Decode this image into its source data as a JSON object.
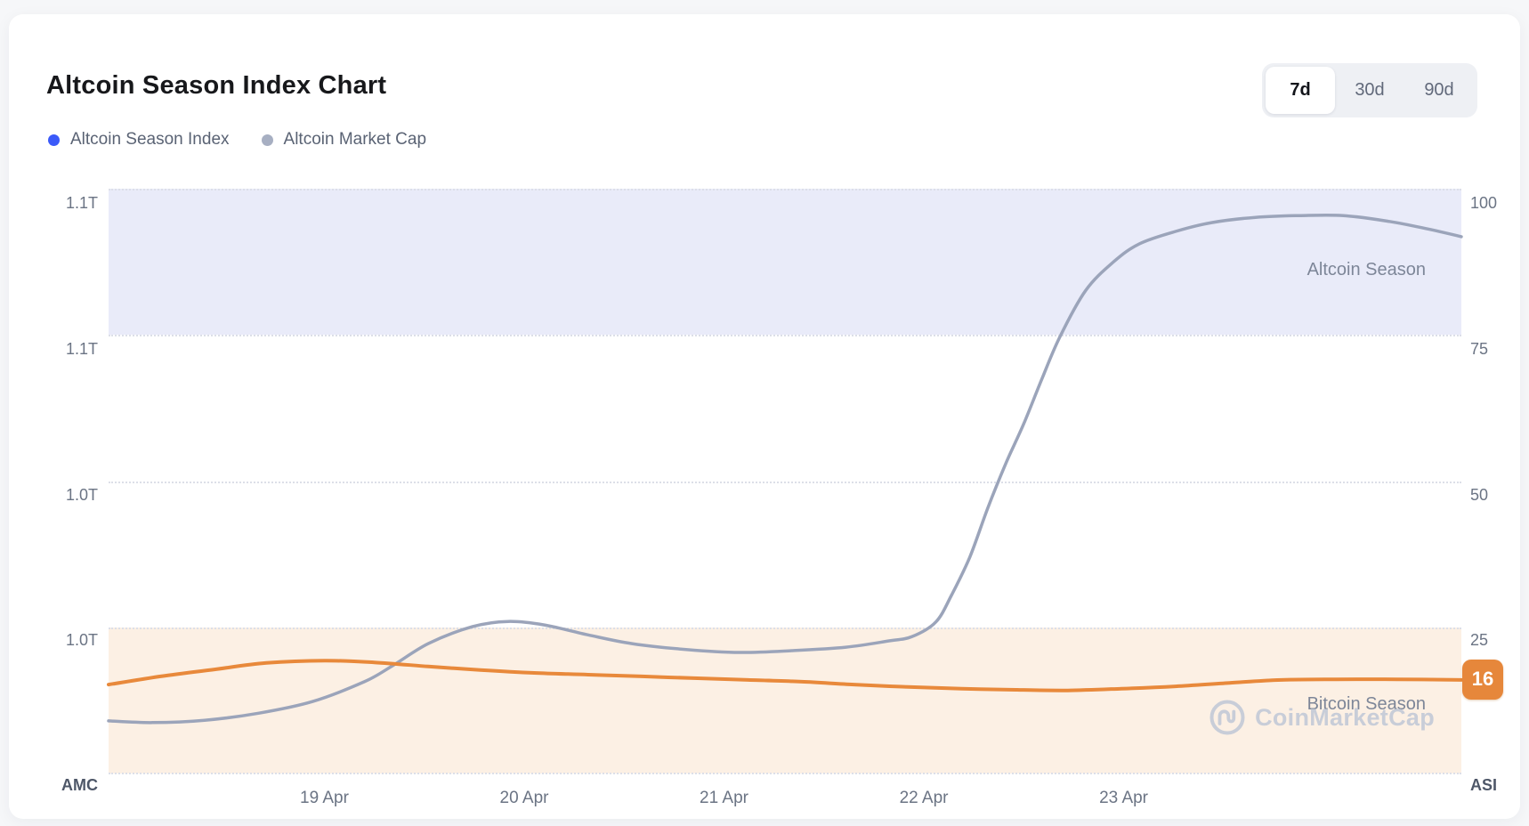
{
  "header": {
    "title": "Altcoin Season Index Chart",
    "ranges": [
      {
        "label": "7d",
        "active": true
      },
      {
        "label": "30d",
        "active": false
      },
      {
        "label": "90d",
        "active": false
      }
    ]
  },
  "legend": {
    "items": [
      {
        "label": "Altcoin Season Index"
      },
      {
        "label": "Altcoin Market Cap"
      }
    ]
  },
  "chart": {
    "zone_labels": {
      "altcoin": "Altcoin Season",
      "bitcoin": "Bitcoin Season"
    },
    "watermark_text": "CoinMarketCap",
    "colors": {
      "asi_line": "#e8893b",
      "amc_line": "#9ba4ba",
      "badge_bg": "#e6873b",
      "legend_asi_dot": "#3b5af9",
      "legend_amc_dot": "#a7afc2",
      "altcoin_band": "#e9ebf9",
      "bitcoin_band": "#fcf0e4"
    }
  },
  "chart_data": {
    "type": "line",
    "title": "Altcoin Season Index Chart",
    "x_axis": {
      "unit": "date",
      "tick_labels": [
        "19 Apr",
        "20 Apr",
        "21 Apr",
        "22 Apr",
        "23 Apr"
      ],
      "tick_t": [
        1,
        2,
        3,
        4,
        5
      ],
      "t_range": [
        -0.08,
        6.69
      ]
    },
    "right_axis": {
      "name": "ASI",
      "tick_labels": [
        "100",
        "75",
        "50",
        "25"
      ],
      "tick_values": [
        100,
        75,
        50,
        25
      ],
      "range": [
        0,
        100
      ]
    },
    "left_axis": {
      "name": "AMC",
      "tick_labels": [
        "1.1T",
        "1.1T",
        "1.0T",
        "1.0T"
      ],
      "range_trillions": [
        0.95,
        1.15
      ]
    },
    "bands": {
      "altcoin_season": [
        75,
        100
      ],
      "bitcoin_season": [
        0,
        25
      ]
    },
    "grid": "dotted-horizontal",
    "legend_position": "top-left",
    "current_asi": "16",
    "series": [
      {
        "name": "Altcoin Season Index",
        "axis": "right",
        "color_key": "asi_line",
        "points": [
          [
            -0.08,
            15.2
          ],
          [
            0.18,
            16.6
          ],
          [
            0.45,
            17.8
          ],
          [
            0.71,
            18.9
          ],
          [
            1.0,
            19.3
          ],
          [
            1.25,
            19.0
          ],
          [
            1.52,
            18.3
          ],
          [
            1.78,
            17.7
          ],
          [
            2.05,
            17.2
          ],
          [
            2.32,
            16.9
          ],
          [
            2.59,
            16.6
          ],
          [
            2.85,
            16.3
          ],
          [
            3.12,
            16.0
          ],
          [
            3.39,
            15.7
          ],
          [
            3.65,
            15.2
          ],
          [
            3.92,
            14.8
          ],
          [
            4.19,
            14.5
          ],
          [
            4.46,
            14.3
          ],
          [
            4.72,
            14.2
          ],
          [
            4.99,
            14.5
          ],
          [
            5.26,
            14.9
          ],
          [
            5.53,
            15.5
          ],
          [
            5.79,
            16.0
          ],
          [
            6.06,
            16.1
          ],
          [
            6.37,
            16.1
          ],
          [
            6.69,
            16.0
          ]
        ]
      },
      {
        "name": "Altcoin Market Cap",
        "axis": "left",
        "color_key": "amc_line",
        "points": [
          [
            -0.08,
            9.0
          ],
          [
            0.14,
            8.7
          ],
          [
            0.4,
            9.1
          ],
          [
            0.67,
            10.3
          ],
          [
            0.94,
            12.3
          ],
          [
            1.2,
            15.7
          ],
          [
            1.34,
            18.4
          ],
          [
            1.52,
            22.2
          ],
          [
            1.74,
            25.1
          ],
          [
            1.92,
            26.0
          ],
          [
            2.1,
            25.4
          ],
          [
            2.32,
            23.7
          ],
          [
            2.54,
            22.2
          ],
          [
            2.81,
            21.2
          ],
          [
            3.08,
            20.7
          ],
          [
            3.34,
            21.0
          ],
          [
            3.61,
            21.6
          ],
          [
            3.83,
            22.7
          ],
          [
            3.94,
            23.4
          ],
          [
            4.06,
            25.9
          ],
          [
            4.14,
            30.6
          ],
          [
            4.23,
            37.0
          ],
          [
            4.32,
            45.4
          ],
          [
            4.41,
            53.0
          ],
          [
            4.5,
            59.8
          ],
          [
            4.59,
            67.4
          ],
          [
            4.68,
            74.6
          ],
          [
            4.81,
            82.6
          ],
          [
            4.95,
            87.5
          ],
          [
            5.08,
            90.6
          ],
          [
            5.26,
            92.7
          ],
          [
            5.44,
            94.2
          ],
          [
            5.66,
            95.1
          ],
          [
            5.88,
            95.4
          ],
          [
            6.1,
            95.4
          ],
          [
            6.33,
            94.4
          ],
          [
            6.51,
            93.2
          ],
          [
            6.69,
            91.8
          ]
        ],
        "values_trillions_usd": [
          0.968,
          0.967,
          0.968,
          0.971,
          0.975,
          0.981,
          0.987,
          0.994,
          1.0,
          1.002,
          1.001,
          0.997,
          0.994,
          0.992,
          0.991,
          0.992,
          0.993,
          0.995,
          0.997,
          1.002,
          1.011,
          1.024,
          1.041,
          1.056,
          1.07,
          1.085,
          1.099,
          1.115,
          1.125,
          1.131,
          1.135,
          1.138,
          1.14,
          1.141,
          1.141,
          1.139,
          1.136,
          1.134
        ]
      }
    ]
  }
}
